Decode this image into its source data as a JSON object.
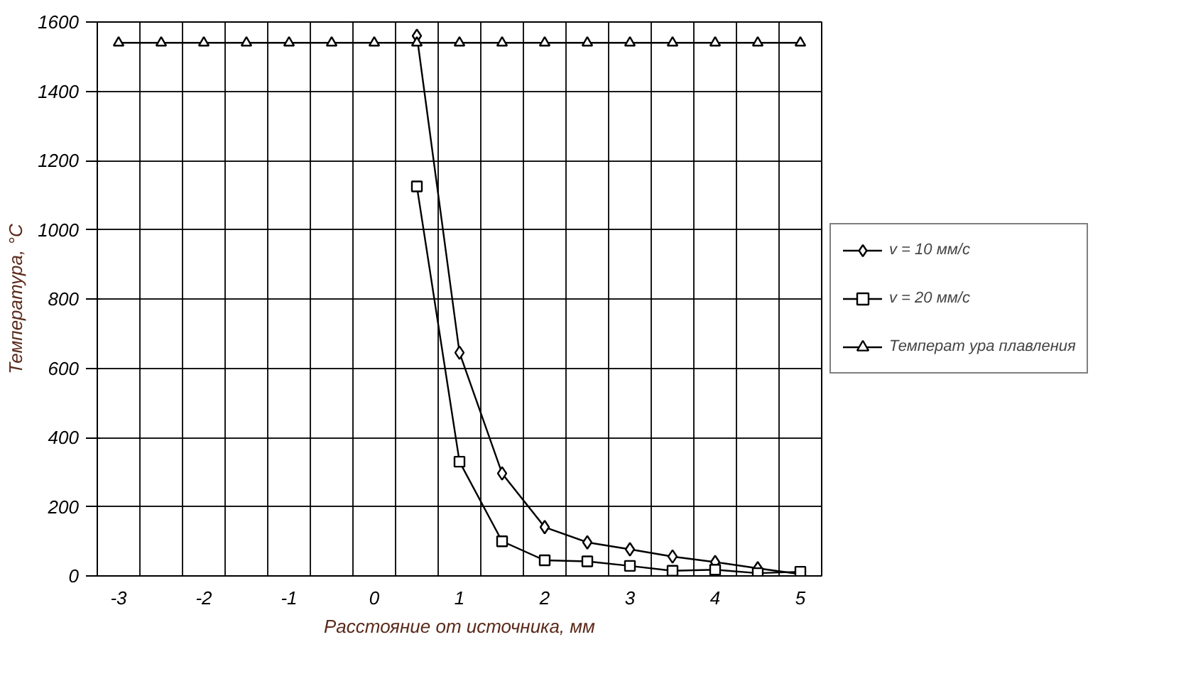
{
  "chart_data": {
    "type": "line",
    "xlabel": "Расстояние от источника, мм",
    "ylabel": "Температура, °С",
    "categories": [
      "-3",
      null,
      "-2",
      null,
      "-1",
      null,
      "0",
      null,
      "1",
      null,
      "2",
      null,
      "3",
      null,
      "4",
      null,
      "5"
    ],
    "ylim": [
      0,
      1600
    ],
    "yticks": [
      0,
      200,
      400,
      600,
      800,
      1000,
      1200,
      1400,
      1600
    ],
    "grid": true,
    "legend": "right",
    "series": [
      {
        "name": "v = 10 мм/с",
        "color": "#000000",
        "marker": "diamond",
        "values": [
          null,
          null,
          null,
          null,
          null,
          null,
          null,
          1560,
          645,
          296,
          141,
          97,
          77,
          56,
          40,
          22,
          5
        ]
      },
      {
        "name": "v = 20 мм/с",
        "color": "#000000",
        "marker": "square",
        "values": [
          null,
          null,
          null,
          null,
          null,
          null,
          null,
          1125,
          330,
          100,
          45,
          42,
          29,
          15,
          18,
          8,
          12
        ]
      },
      {
        "name": "Температ ура плавления",
        "color": "#000000",
        "marker": "triangle",
        "values": [
          1540,
          1540,
          1540,
          1540,
          1540,
          1540,
          1540,
          1540,
          1540,
          1540,
          1540,
          1540,
          1540,
          1540,
          1540,
          1540,
          1540
        ]
      }
    ]
  }
}
